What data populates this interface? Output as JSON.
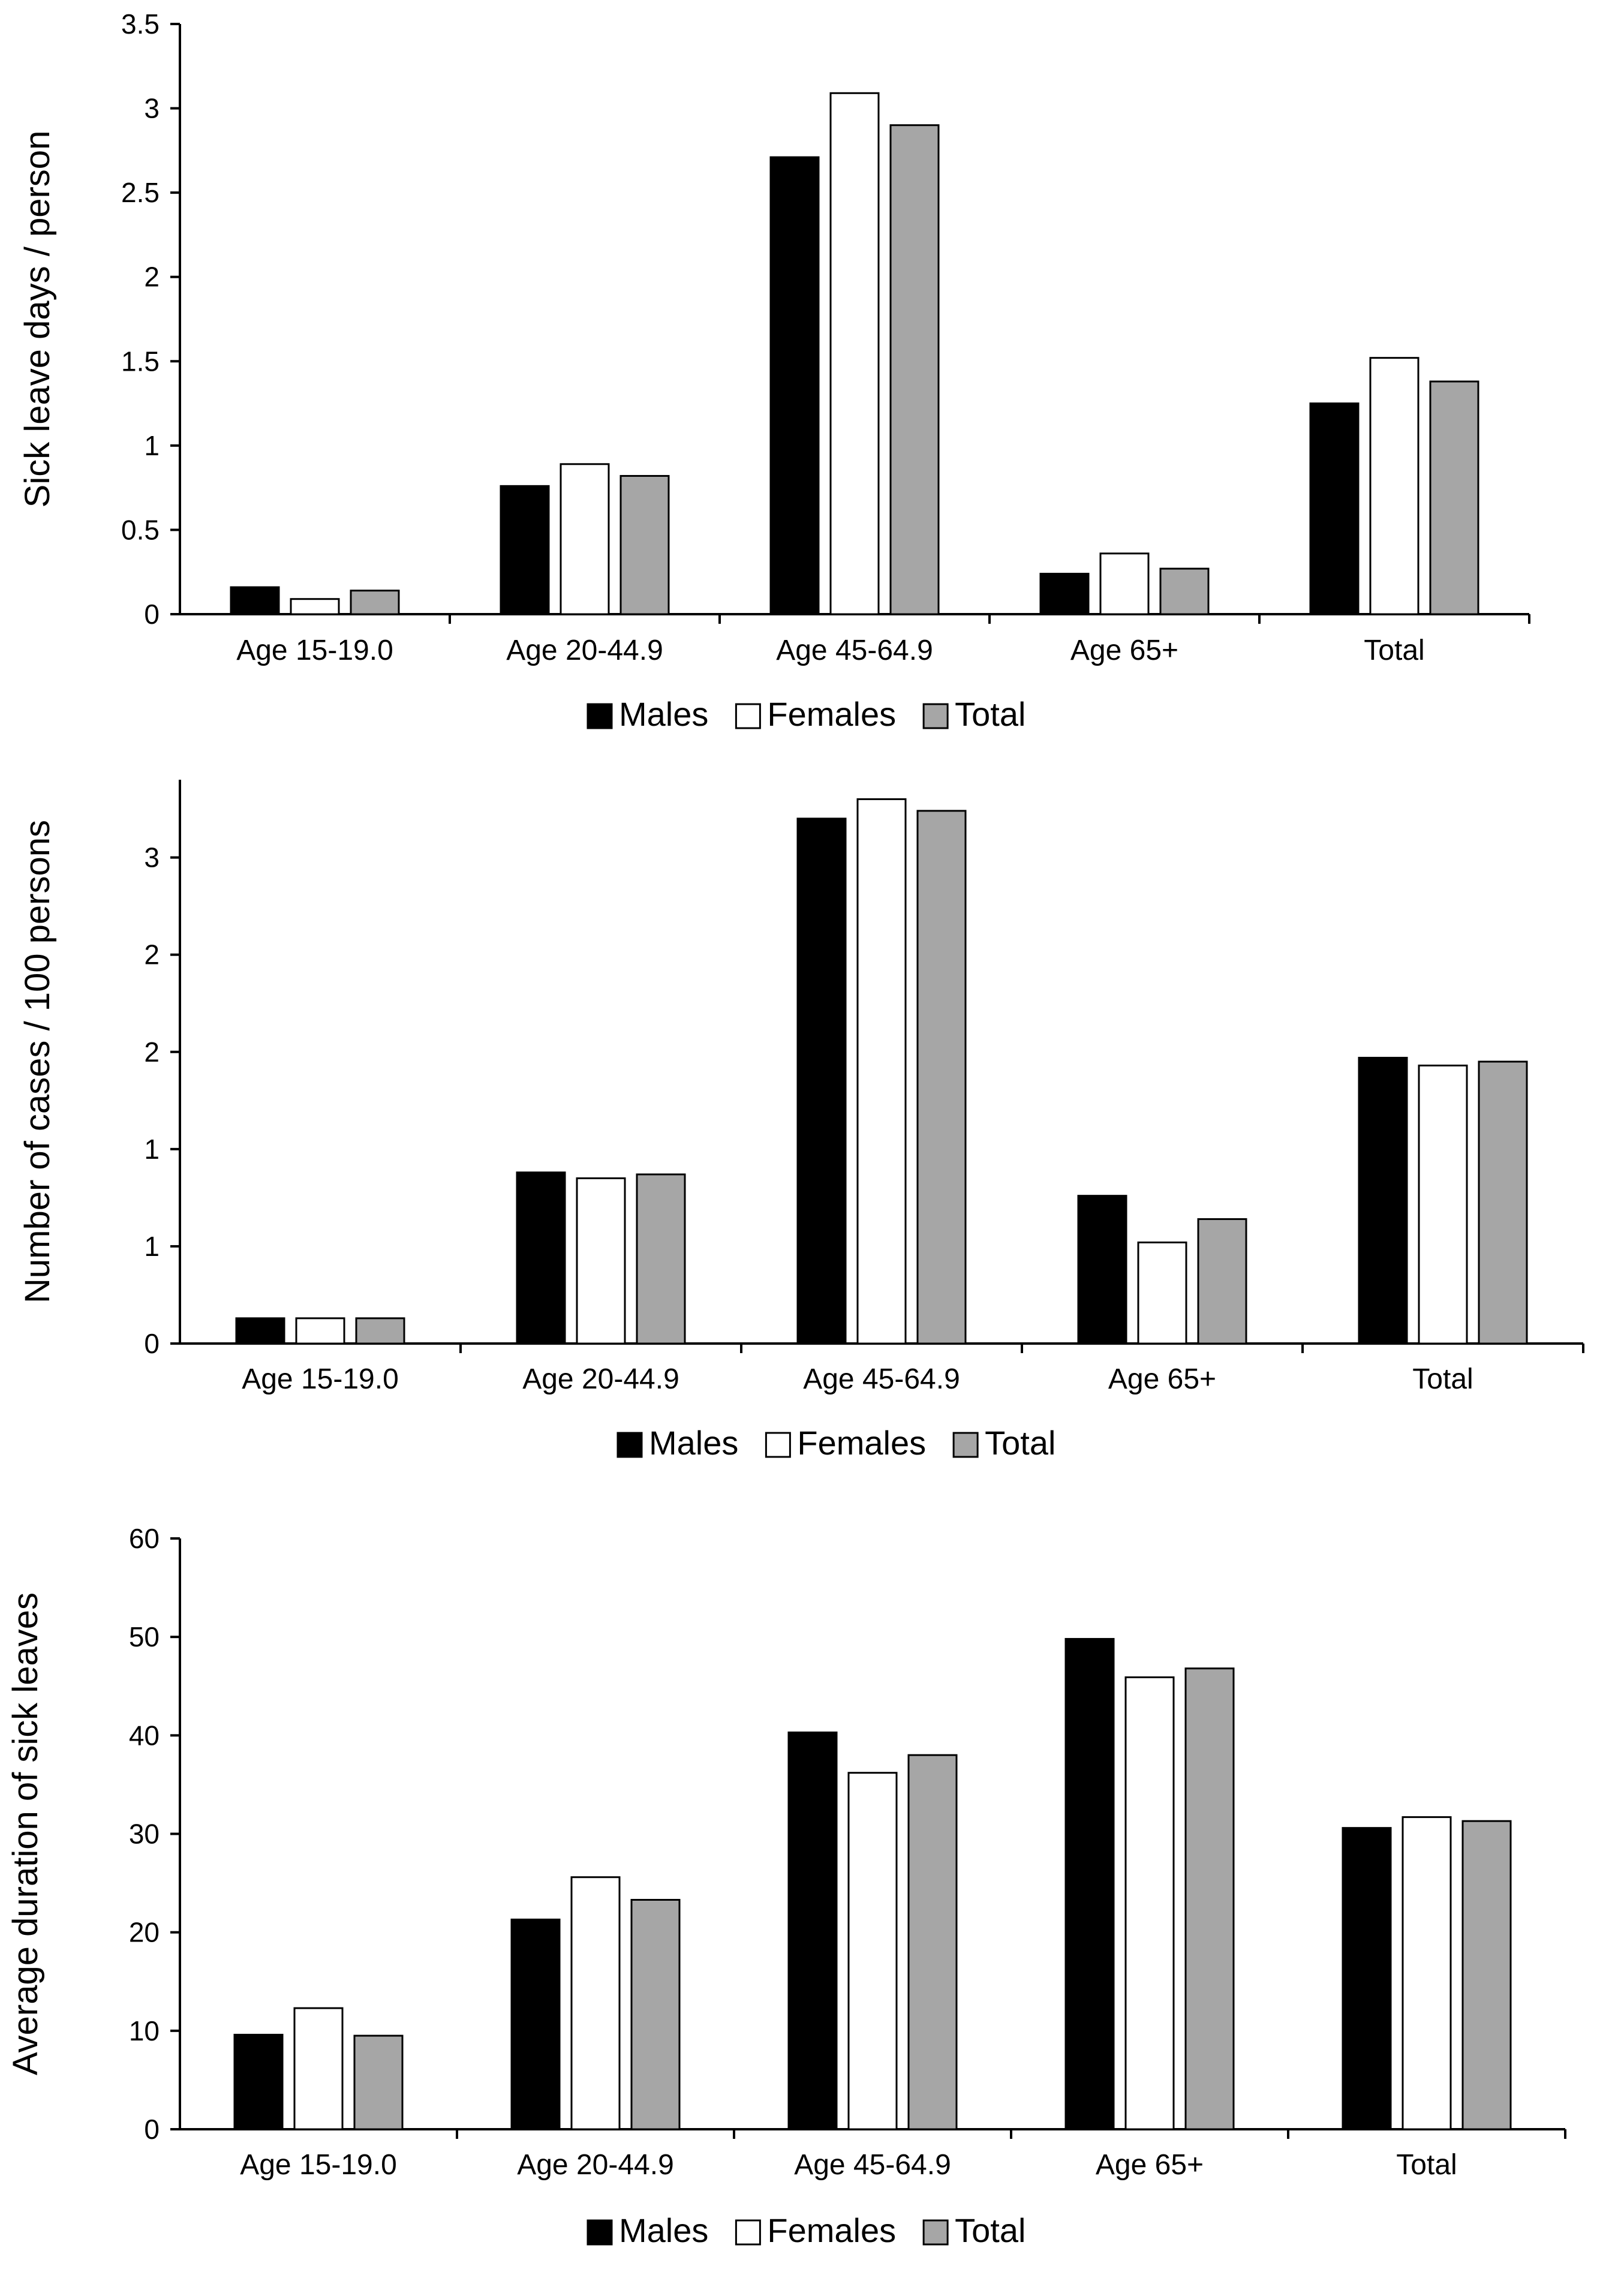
{
  "chart_data": [
    {
      "type": "bar",
      "title": "",
      "ylabel": "Sick leave days / person",
      "xlabel": "",
      "ylim": [
        0,
        3.5
      ],
      "yticks": [
        0,
        0.5,
        1,
        1.5,
        2,
        2.5,
        3,
        3.5
      ],
      "ytick_labels": [
        "0",
        "0.5",
        "1",
        "1.5",
        "2",
        "2.5",
        "3",
        "3.5"
      ],
      "categories": [
        "Age 15-19.0",
        "Age 20-44.9",
        "Age 45-64.9",
        "Age 65+",
        "Total"
      ],
      "series": [
        {
          "name": "Males",
          "color": "#000000",
          "values": [
            0.16,
            0.76,
            2.71,
            0.24,
            1.25
          ]
        },
        {
          "name": "Females",
          "color": "#ffffff",
          "values": [
            0.09,
            0.89,
            3.09,
            0.36,
            1.52
          ]
        },
        {
          "name": "Total",
          "color": "#a6a6a6",
          "values": [
            0.14,
            0.82,
            2.9,
            0.27,
            1.38
          ]
        }
      ],
      "legend": "bottom"
    },
    {
      "type": "bar",
      "title": "",
      "ylabel": "Number of cases / 100 persons",
      "xlabel": "",
      "ylim": [
        0,
        2.9
      ],
      "yticks": [
        0,
        0.5,
        1,
        1.5,
        2,
        2.5
      ],
      "ytick_labels": [
        "0",
        "1",
        "1",
        "2",
        "2",
        "3"
      ],
      "categories": [
        "Age 15-19.0",
        "Age 20-44.9",
        "Age 45-64.9",
        "Age 65+",
        "Total"
      ],
      "series": [
        {
          "name": "Males",
          "color": "#000000",
          "values": [
            0.13,
            0.88,
            2.7,
            0.76,
            1.47
          ]
        },
        {
          "name": "Females",
          "color": "#ffffff",
          "values": [
            0.13,
            0.85,
            2.8,
            0.52,
            1.43
          ]
        },
        {
          "name": "Total",
          "color": "#a6a6a6",
          "values": [
            0.13,
            0.87,
            2.74,
            0.64,
            1.45
          ]
        }
      ],
      "legend": "bottom"
    },
    {
      "type": "bar",
      "title": "",
      "ylabel": "Average duration of sick leaves",
      "xlabel": "",
      "ylim": [
        0,
        60
      ],
      "yticks": [
        0,
        10,
        20,
        30,
        40,
        50,
        60
      ],
      "ytick_labels": [
        "0",
        "10",
        "20",
        "30",
        "40",
        "50",
        "60"
      ],
      "categories": [
        "Age 15-19.0",
        "Age 20-44.9",
        "Age 45-64.9",
        "Age 65+",
        "Total"
      ],
      "series": [
        {
          "name": "Males",
          "color": "#000000",
          "values": [
            9.6,
            21.3,
            40.3,
            49.8,
            30.6
          ]
        },
        {
          "name": "Females",
          "color": "#ffffff",
          "values": [
            12.3,
            25.6,
            36.2,
            45.9,
            31.7
          ]
        },
        {
          "name": "Total",
          "color": "#a6a6a6",
          "values": [
            9.5,
            23.3,
            38.0,
            46.8,
            31.3
          ]
        }
      ],
      "legend": "bottom"
    }
  ]
}
